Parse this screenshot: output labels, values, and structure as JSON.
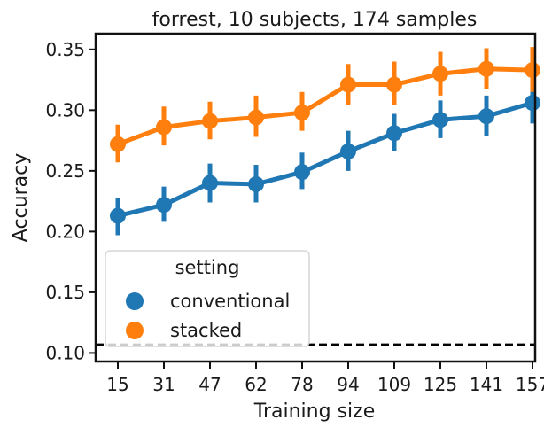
{
  "chart_data": {
    "type": "line",
    "title": "forrest, 10 subjects, 174 samples",
    "xlabel": "Training size",
    "ylabel": "Accuracy",
    "categories": [
      "15",
      "31",
      "47",
      "62",
      "78",
      "94",
      "109",
      "125",
      "141",
      "157"
    ],
    "ylim": [
      0.093,
      0.363
    ],
    "yticks": [
      0.1,
      0.15,
      0.2,
      0.25,
      0.3,
      0.35
    ],
    "ytick_labels": [
      "0.10",
      "0.15",
      "0.20",
      "0.25",
      "0.30",
      "0.35"
    ],
    "chance_level": 0.107,
    "grid": false,
    "legend": {
      "title": "setting",
      "placement": "lower-left"
    },
    "series": [
      {
        "name": "conventional",
        "color": "#1f77b4",
        "values": [
          0.213,
          0.222,
          0.24,
          0.239,
          0.249,
          0.266,
          0.281,
          0.292,
          0.295,
          0.306
        ],
        "err_low": [
          0.197,
          0.208,
          0.224,
          0.224,
          0.235,
          0.25,
          0.266,
          0.277,
          0.279,
          0.289
        ],
        "err_high": [
          0.228,
          0.237,
          0.256,
          0.255,
          0.265,
          0.283,
          0.297,
          0.308,
          0.312,
          0.322
        ]
      },
      {
        "name": "stacked",
        "color": "#ff7f0e",
        "values": [
          0.272,
          0.286,
          0.291,
          0.294,
          0.298,
          0.321,
          0.321,
          0.33,
          0.334,
          0.333
        ],
        "err_low": [
          0.257,
          0.271,
          0.276,
          0.278,
          0.283,
          0.304,
          0.304,
          0.312,
          0.317,
          0.315
        ],
        "err_high": [
          0.288,
          0.303,
          0.307,
          0.312,
          0.315,
          0.338,
          0.34,
          0.348,
          0.351,
          0.352
        ]
      }
    ]
  }
}
